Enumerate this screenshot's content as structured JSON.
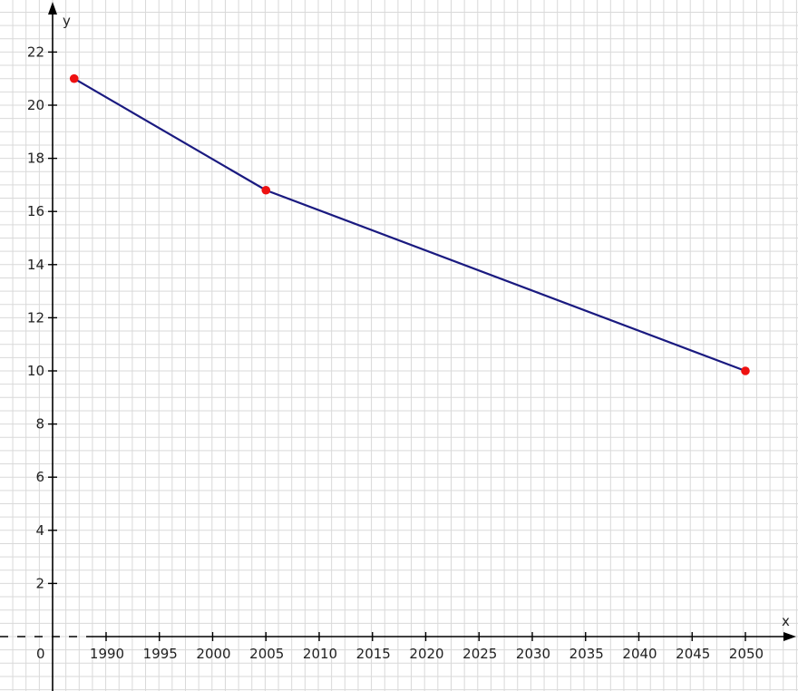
{
  "chart_data": {
    "type": "line",
    "title": "",
    "xlabel": "x",
    "ylabel": "y",
    "origin_label": "0",
    "x_ticks": [
      1990,
      1995,
      2000,
      2005,
      2010,
      2015,
      2020,
      2025,
      2030,
      2035,
      2040,
      2045,
      2050
    ],
    "y_ticks": [
      2,
      4,
      6,
      8,
      10,
      12,
      14,
      16,
      18,
      20,
      22
    ],
    "xlim": [
      1987,
      2055
    ],
    "ylim": [
      0,
      23
    ],
    "x_axis_break": true,
    "grid": true,
    "series": [
      {
        "x": [
          1987,
          2005,
          2050
        ],
        "y": [
          21,
          16.8,
          10
        ],
        "line_color": "#1a1a80",
        "marker_color": "#ee1111"
      }
    ]
  },
  "colors": {
    "grid": "#d9d9d9",
    "axis": "#000000"
  }
}
